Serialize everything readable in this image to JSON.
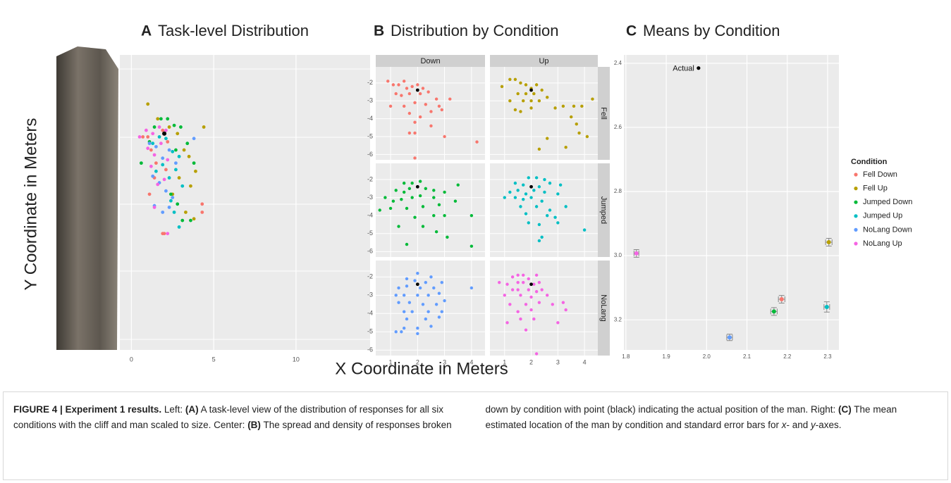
{
  "figure": {
    "x_axis_label": "X Coordinate in Meters",
    "y_axis_label": "Y Coordinate in Meters"
  },
  "chart_data": [
    {
      "type": "scatter",
      "panel": "A",
      "title": "Task-level Distribution",
      "xlim": [
        -0.7,
        14.5
      ],
      "ylim": [
        -15.6,
        2.4
      ],
      "xticks": [
        0,
        5,
        10
      ],
      "grid": true,
      "actual": {
        "x": 2,
        "y": -2.4
      },
      "series": [
        {
          "name": "Fell Down",
          "color": "#F8766D",
          "x": [
            0.7,
            1.0,
            1.2,
            1.5,
            1.9,
            2.2,
            1.1,
            1.4,
            2.0,
            4.3,
            4.3,
            1.9,
            2.1
          ],
          "y": [
            -2.6,
            -2.6,
            -3.4,
            -4.2,
            -2.2,
            -2.9,
            -6.1,
            -5.1,
            -8.5,
            -7.2,
            -6.7,
            -8.5,
            -4.6
          ]
        },
        {
          "name": "Fell Up",
          "color": "#B79F00",
          "x": [
            1.0,
            1.6,
            2.3,
            2.8,
            3.2,
            3.5,
            3.9,
            4.4,
            2.9,
            3.6,
            2.5,
            3.3,
            3.8
          ],
          "y": [
            -0.6,
            -1.5,
            -2.0,
            -2.4,
            -3.4,
            -3.8,
            -4.7,
            -2.0,
            -5.1,
            -5.6,
            -6.1,
            -7.2,
            -7.6
          ]
        },
        {
          "name": "Jumped Down",
          "color": "#00BA38",
          "x": [
            0.6,
            1.1,
            1.4,
            1.8,
            2.2,
            2.6,
            3.0,
            2.7,
            3.4,
            3.8,
            2.4,
            2.8,
            3.1,
            3.6
          ],
          "y": [
            -4.2,
            -2.9,
            -2.0,
            -1.5,
            -1.5,
            -1.9,
            -2.0,
            -3.4,
            -3.0,
            -4.2,
            -6.1,
            -6.7,
            -7.7,
            -7.7
          ]
        },
        {
          "name": "Jumped Up",
          "color": "#00BFC4",
          "x": [
            1.3,
            1.7,
            2.1,
            2.5,
            2.9,
            1.5,
            1.9,
            2.3,
            2.7,
            3.1,
            2.4,
            2.6,
            2.9
          ],
          "y": [
            -3.0,
            -2.6,
            -2.7,
            -3.5,
            -3.8,
            -4.7,
            -4.3,
            -5.1,
            -4.6,
            -5.6,
            -6.5,
            -7.2,
            -8.1
          ]
        },
        {
          "name": "NoLang Down",
          "color": "#619CFF",
          "x": [
            1.1,
            1.5,
            1.9,
            2.3,
            2.7,
            1.3,
            1.7,
            2.1,
            2.5,
            1.4,
            1.9,
            2.3,
            3.8
          ],
          "y": [
            -3.0,
            -3.2,
            -3.9,
            -3.4,
            -4.2,
            -5.0,
            -5.4,
            -5.9,
            -6.3,
            -6.8,
            -7.2,
            -6.9,
            -2.7
          ]
        },
        {
          "name": "NoLang Up",
          "color": "#F564E3",
          "x": [
            0.5,
            0.9,
            1.3,
            1.7,
            2.1,
            1.0,
            1.4,
            1.8,
            2.2,
            1.2,
            1.6,
            2.0,
            1.4,
            2.2
          ],
          "y": [
            -2.6,
            -2.2,
            -2.4,
            -2.0,
            -2.2,
            -3.3,
            -3.7,
            -3.0,
            -4.0,
            -4.4,
            -5.5,
            -5.2,
            -6.9,
            -8.5
          ]
        }
      ]
    },
    {
      "type": "facet-scatter",
      "panel": "B",
      "title": "Distribution by Condition",
      "columns": [
        "Down",
        "Up"
      ],
      "rows": [
        "Fell",
        "Jumped",
        "NoLang"
      ],
      "xlim": [
        0.45,
        4.5
      ],
      "ylim": [
        -6.3,
        -1.1
      ],
      "xticks": [
        1,
        2,
        3,
        4
      ],
      "yticks": [
        -2,
        -3,
        -4,
        -5,
        -6
      ],
      "grid": true,
      "actual": {
        "x": 2,
        "y": -2.4
      },
      "series": [
        {
          "name": "Fell Down",
          "color": "#F8766D",
          "x": [
            0.9,
            1.1,
            1.3,
            1.5,
            1.6,
            1.8,
            2.0,
            2.2,
            1.2,
            1.4,
            1.7,
            2.1,
            2.4,
            2.7,
            3.2,
            1.0,
            1.5,
            1.9,
            2.3,
            2.8,
            1.7,
            2.1,
            2.5,
            2.9,
            1.9,
            2.5,
            1.7,
            1.9,
            3.0,
            4.2,
            1.9
          ],
          "y": [
            -1.9,
            -2.1,
            -2.1,
            -1.9,
            -2.3,
            -2.2,
            -2.1,
            -2.3,
            -2.6,
            -2.7,
            -2.6,
            -2.6,
            -2.5,
            -2.9,
            -2.9,
            -3.3,
            -3.3,
            -3.1,
            -3.2,
            -3.3,
            -3.7,
            -3.9,
            -3.6,
            -3.5,
            -4.2,
            -4.4,
            -4.8,
            -4.8,
            -5.0,
            -5.3,
            -6.2
          ]
        },
        {
          "name": "Fell Up",
          "color": "#B79F00",
          "x": [
            0.9,
            1.2,
            1.4,
            1.6,
            1.8,
            2.0,
            2.2,
            1.5,
            1.8,
            2.1,
            2.4,
            2.6,
            1.2,
            1.7,
            2.0,
            2.3,
            1.4,
            1.6,
            2.0,
            2.9,
            3.2,
            3.6,
            3.9,
            4.3,
            3.5,
            3.7,
            3.8,
            4.1,
            2.6,
            3.3,
            2.3
          ],
          "y": [
            -2.2,
            -1.8,
            -1.8,
            -2.0,
            -2.1,
            -2.3,
            -2.1,
            -2.6,
            -2.6,
            -2.6,
            -2.4,
            -2.8,
            -3.0,
            -3.0,
            -3.0,
            -3.0,
            -3.5,
            -3.6,
            -3.4,
            -3.4,
            -3.3,
            -3.3,
            -3.3,
            -2.9,
            -3.9,
            -4.3,
            -4.8,
            -5.0,
            -5.1,
            -5.6,
            -5.7
          ]
        },
        {
          "name": "Jumped Down",
          "color": "#00BA38",
          "x": [
            1.5,
            1.8,
            2.1,
            1.2,
            1.5,
            1.7,
            2.0,
            2.3,
            2.6,
            3.5,
            0.8,
            1.1,
            1.4,
            1.8,
            2.1,
            2.6,
            3.0,
            3.4,
            0.6,
            1.0,
            1.6,
            2.2,
            2.8,
            1.9,
            2.6,
            3.0,
            4.0,
            1.3,
            2.2,
            2.7,
            3.1,
            1.6,
            4.0
          ],
          "y": [
            -2.2,
            -2.2,
            -2.1,
            -2.6,
            -2.7,
            -2.5,
            -2.4,
            -2.5,
            -2.6,
            -2.3,
            -3.0,
            -3.2,
            -3.1,
            -3.0,
            -2.9,
            -3.0,
            -2.7,
            -3.2,
            -3.7,
            -3.6,
            -3.6,
            -3.5,
            -3.4,
            -4.1,
            -4.0,
            -4.0,
            -4.0,
            -4.6,
            -4.6,
            -4.9,
            -5.2,
            -5.6,
            -5.7
          ]
        },
        {
          "name": "Jumped Up",
          "color": "#00BFC4",
          "x": [
            1.9,
            2.2,
            2.5,
            1.4,
            1.7,
            2.3,
            2.7,
            3.1,
            1.2,
            1.5,
            1.8,
            2.1,
            2.5,
            3.0,
            1.0,
            1.4,
            1.7,
            2.0,
            2.4,
            1.6,
            2.2,
            2.7,
            3.3,
            1.8,
            2.6,
            2.9,
            1.9,
            2.3,
            3.0,
            4.0,
            2.4,
            2.3
          ],
          "y": [
            -1.9,
            -1.9,
            -2.0,
            -2.2,
            -2.3,
            -2.4,
            -2.2,
            -2.3,
            -2.7,
            -2.6,
            -2.8,
            -2.6,
            -2.7,
            -2.8,
            -3.0,
            -3.0,
            -3.1,
            -3.0,
            -3.2,
            -3.5,
            -3.5,
            -3.7,
            -3.5,
            -3.9,
            -4.0,
            -4.1,
            -4.4,
            -4.5,
            -4.4,
            -4.8,
            -5.2,
            -5.4
          ]
        },
        {
          "name": "NoLang Down",
          "color": "#619CFF",
          "x": [
            2.0,
            2.5,
            1.6,
            1.9,
            2.3,
            2.9,
            1.3,
            1.6,
            2.1,
            2.6,
            4.0,
            1.2,
            1.5,
            2.0,
            2.4,
            2.8,
            1.3,
            1.7,
            2.2,
            2.7,
            3.0,
            1.5,
            1.8,
            2.4,
            2.9,
            1.6,
            2.3,
            2.8,
            1.5,
            2.0,
            2.5,
            1.2,
            1.4,
            2.0
          ],
          "y": [
            -1.8,
            -2.0,
            -2.1,
            -2.2,
            -2.3,
            -2.3,
            -2.6,
            -2.5,
            -2.6,
            -2.6,
            -2.6,
            -3.0,
            -3.0,
            -3.0,
            -3.0,
            -2.9,
            -3.4,
            -3.4,
            -3.5,
            -3.5,
            -3.3,
            -3.9,
            -3.9,
            -3.9,
            -3.9,
            -4.3,
            -4.3,
            -4.2,
            -4.8,
            -4.8,
            -4.7,
            -5.0,
            -5.0,
            -5.1
          ]
        },
        {
          "name": "NoLang Up",
          "color": "#F564E3",
          "x": [
            1.3,
            1.5,
            1.7,
            1.9,
            2.2,
            0.8,
            1.1,
            1.5,
            1.7,
            2.1,
            2.3,
            1.3,
            1.5,
            1.9,
            2.2,
            2.4,
            1.0,
            1.6,
            2.0,
            2.6,
            1.2,
            1.8,
            2.3,
            2.8,
            3.2,
            1.5,
            2.0,
            3.3,
            1.6,
            2.1,
            3.0,
            1.1,
            1.8,
            2.2
          ],
          "y": [
            -2.0,
            -1.9,
            -1.9,
            -2.1,
            -1.9,
            -2.3,
            -2.4,
            -2.3,
            -2.3,
            -2.4,
            -2.3,
            -2.7,
            -2.7,
            -2.7,
            -2.8,
            -2.7,
            -3.0,
            -3.0,
            -3.1,
            -3.0,
            -3.5,
            -3.5,
            -3.4,
            -3.5,
            -3.4,
            -3.9,
            -3.8,
            -3.8,
            -4.3,
            -4.3,
            -4.5,
            -4.5,
            -4.9,
            -6.2
          ]
        }
      ]
    },
    {
      "type": "errorbar",
      "panel": "C",
      "title": "Means by Condition",
      "xlim": [
        1.795,
        2.328
      ],
      "ylim": [
        2.374,
        3.294
      ],
      "y_reversed": true,
      "xticks": [
        1.8,
        1.9,
        {
          "value": 2,
          "label": "2.0"
        },
        2.1,
        2.2,
        2.3
      ],
      "yticks": [
        2.4,
        2.6,
        2.8,
        {
          "value": 3,
          "label": "3.0"
        },
        3.2
      ],
      "grid": true,
      "legend_title": "Condition",
      "legend": "right",
      "annotation": {
        "text": "Actual",
        "x": 1.98,
        "y": 2.415
      },
      "series": [
        {
          "name": "Fell Down",
          "color": "#F8766D",
          "x": 2.186,
          "y": 3.136,
          "xerr": 0.008,
          "yerr": 0.012
        },
        {
          "name": "Fell Up",
          "color": "#B79F00",
          "x": 2.303,
          "y": 2.958,
          "xerr": 0.008,
          "yerr": 0.012
        },
        {
          "name": "Jumped Down",
          "color": "#00BA38",
          "x": 2.167,
          "y": 3.174,
          "xerr": 0.008,
          "yerr": 0.012
        },
        {
          "name": "Jumped Up",
          "color": "#00BFC4",
          "x": 2.298,
          "y": 3.16,
          "xerr": 0.007,
          "yerr": 0.016
        },
        {
          "name": "NoLang Down",
          "color": "#619CFF",
          "x": 2.057,
          "y": 3.255,
          "xerr": 0.007,
          "yerr": 0.01
        },
        {
          "name": "NoLang Up",
          "color": "#F564E3",
          "x": 1.826,
          "y": 2.993,
          "xerr": 0.006,
          "yerr": 0.012
        }
      ]
    }
  ],
  "caption": [
    {
      "text": "FIGURE 4 | Experiment 1 results.",
      "style": "bold"
    },
    {
      "text": " Left: ",
      "style": "normal"
    },
    {
      "text": "(A)",
      "style": "bold"
    },
    {
      "text": " A task-level view of the distribution of responses for all six conditions with the cliff and man scaled to size. Center: ",
      "style": "normal"
    },
    {
      "text": "(B)",
      "style": "bold"
    },
    {
      "text": " The spread and density of responses broken down by condition with point (black) indicating the actual position of the man. Right: ",
      "style": "normal"
    },
    {
      "text": "(C)",
      "style": "bold"
    },
    {
      "text": " The mean estimated location of the man by condition and standard error bars for ",
      "style": "normal"
    },
    {
      "text": "x",
      "style": "italic"
    },
    {
      "text": "- and ",
      "style": "normal"
    },
    {
      "text": "y",
      "style": "italic"
    },
    {
      "text": "-axes.",
      "style": "normal"
    }
  ]
}
